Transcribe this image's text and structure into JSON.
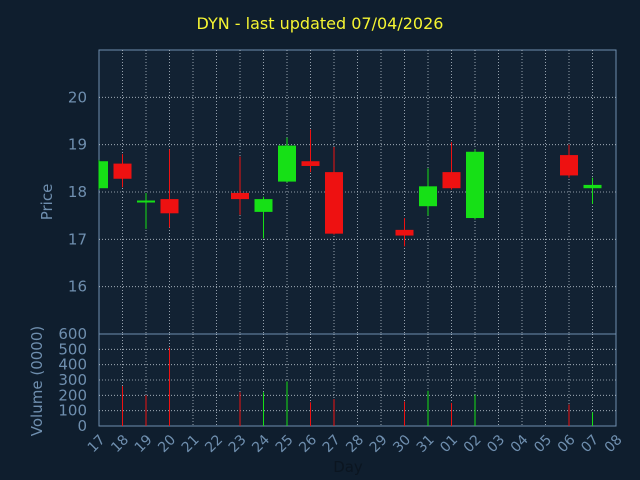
{
  "title": "DYN - last updated 07/04/2026",
  "colors": {
    "background": "#0f1e2e",
    "panel": "#122233",
    "axis_text": "#6f8faf",
    "grid": "#b8c2cc",
    "title": "#f5f532",
    "up": "#16e016",
    "down": "#ee1111"
  },
  "chart_data": [
    {
      "type": "candlestick",
      "ylabel": "Price",
      "ylim": [
        15,
        21
      ],
      "yticks": [
        16,
        17,
        18,
        19,
        20
      ],
      "grid": true,
      "x_labels": [
        "17",
        "18",
        "19",
        "20",
        "21",
        "22",
        "23",
        "24",
        "25",
        "26",
        "27",
        "28",
        "29",
        "30",
        "31",
        "01",
        "02",
        "03",
        "04",
        "05",
        "06",
        "07",
        "08"
      ],
      "candles": [
        {
          "day": "17",
          "open": 18.08,
          "close": 18.65,
          "high": 18.68,
          "low": 18.05
        },
        {
          "day": "18",
          "open": 18.6,
          "close": 18.28,
          "high": 18.8,
          "low": 18.1
        },
        {
          "day": "19",
          "open": 17.8,
          "close": 17.82,
          "high": 17.98,
          "low": 17.22
        },
        {
          "day": "20",
          "open": 17.85,
          "close": 17.55,
          "high": 18.9,
          "low": 17.25
        },
        {
          "day": "23",
          "open": 17.98,
          "close": 17.85,
          "high": 18.75,
          "low": 17.52
        },
        {
          "day": "24",
          "open": 17.58,
          "close": 17.85,
          "high": 17.9,
          "low": 17.02
        },
        {
          "day": "25",
          "open": 18.22,
          "close": 18.98,
          "high": 19.15,
          "low": 18.2
        },
        {
          "day": "26",
          "open": 18.65,
          "close": 18.55,
          "high": 19.32,
          "low": 18.42
        },
        {
          "day": "27",
          "open": 18.42,
          "close": 17.12,
          "high": 18.95,
          "low": 17.1
        },
        {
          "day": "30",
          "open": 17.2,
          "close": 17.08,
          "high": 17.45,
          "low": 16.85
        },
        {
          "day": "31",
          "open": 17.7,
          "close": 18.12,
          "high": 18.5,
          "low": 17.5
        },
        {
          "day": "01",
          "open": 18.42,
          "close": 18.08,
          "high": 19.05,
          "low": 18.05
        },
        {
          "day": "02",
          "open": 17.45,
          "close": 18.85,
          "high": 18.9,
          "low": 17.42
        },
        {
          "day": "06",
          "open": 18.78,
          "close": 18.35,
          "high": 19.0,
          "low": 18.3
        },
        {
          "day": "07",
          "open": 18.08,
          "close": 18.15,
          "high": 18.3,
          "low": 17.75
        }
      ]
    },
    {
      "type": "bar",
      "xlabel": "Day",
      "ylabel": "Volume (0000)",
      "ylim": [
        0,
        600
      ],
      "yticks": [
        0,
        100,
        200,
        300,
        400,
        500,
        600
      ],
      "volumes": [
        {
          "day": "18",
          "value": 260,
          "dir": "down"
        },
        {
          "day": "19",
          "value": 200,
          "dir": "down"
        },
        {
          "day": "20",
          "value": 510,
          "dir": "down"
        },
        {
          "day": "23",
          "value": 220,
          "dir": "down"
        },
        {
          "day": "24",
          "value": 220,
          "dir": "up"
        },
        {
          "day": "25",
          "value": 290,
          "dir": "up"
        },
        {
          "day": "26",
          "value": 155,
          "dir": "down"
        },
        {
          "day": "27",
          "value": 175,
          "dir": "down"
        },
        {
          "day": "30",
          "value": 160,
          "dir": "down"
        },
        {
          "day": "31",
          "value": 230,
          "dir": "up"
        },
        {
          "day": "01",
          "value": 150,
          "dir": "down"
        },
        {
          "day": "02",
          "value": 205,
          "dir": "up"
        },
        {
          "day": "06",
          "value": 140,
          "dir": "down"
        },
        {
          "day": "07",
          "value": 90,
          "dir": "up"
        }
      ]
    }
  ]
}
